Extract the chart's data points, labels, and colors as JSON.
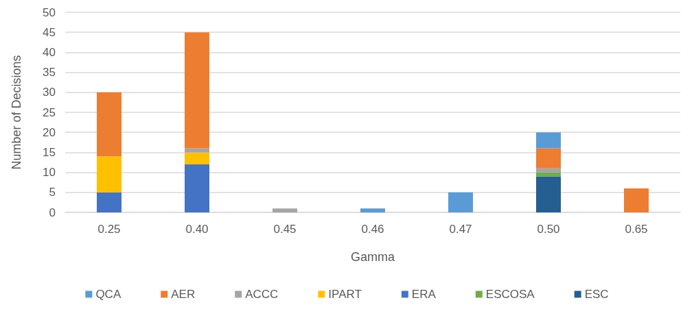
{
  "chart_data": {
    "type": "bar",
    "stacked": true,
    "xlabel": "Gamma",
    "ylabel": "Number of Decisions",
    "categories": [
      "0.25",
      "0.40",
      "0.45",
      "0.46",
      "0.47",
      "0.50",
      "0.65"
    ],
    "series": [
      {
        "name": "ESC",
        "color": "#255e91",
        "values": [
          0,
          0,
          0,
          0,
          0,
          9,
          0
        ]
      },
      {
        "name": "ESCOSA",
        "color": "#70ad47",
        "values": [
          0,
          0,
          0,
          0,
          0,
          1,
          0
        ]
      },
      {
        "name": "ERA",
        "color": "#4472c4",
        "values": [
          5,
          12,
          0,
          0,
          0,
          0,
          0
        ]
      },
      {
        "name": "IPART",
        "color": "#ffc000",
        "values": [
          9,
          3,
          0,
          0,
          0,
          0,
          0
        ]
      },
      {
        "name": "ACCC",
        "color": "#a5a5a5",
        "values": [
          0,
          1,
          1,
          0,
          0,
          1,
          0
        ]
      },
      {
        "name": "AER",
        "color": "#ed7d31",
        "values": [
          16,
          29,
          0,
          0,
          0,
          5,
          6
        ]
      },
      {
        "name": "QCA",
        "color": "#5b9bd5",
        "values": [
          0,
          0,
          0,
          1,
          5,
          4,
          0
        ]
      }
    ],
    "ylim": [
      0,
      50
    ],
    "yticks": [
      0,
      5,
      10,
      15,
      20,
      25,
      30,
      35,
      40,
      45,
      50
    ],
    "grid": "y",
    "legend": "bottom"
  }
}
